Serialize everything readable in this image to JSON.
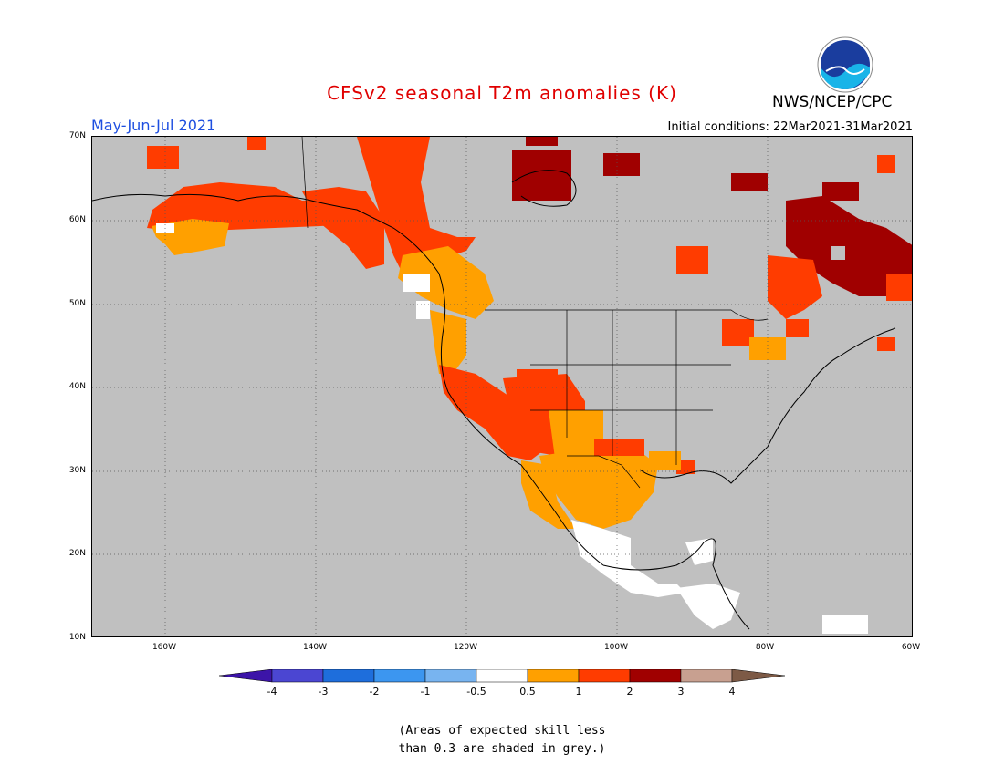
{
  "header": {
    "title": "CFSv2 seasonal T2m anomalies (K)",
    "season": "May-Jun-Jul 2021",
    "initial_conditions": "Initial conditions: 22Mar2021-31Mar2021",
    "agency": "NWS/NCEP/CPC",
    "logo_text": "NOAA"
  },
  "axes": {
    "lat_labels": [
      "70N",
      "60N",
      "50N",
      "40N",
      "30N",
      "20N",
      "10N"
    ],
    "lon_labels": [
      "160W",
      "140W",
      "120W",
      "100W",
      "80W",
      "60W"
    ]
  },
  "colorbar": {
    "labels": [
      "-4",
      "-3",
      "-2",
      "-1",
      "-0.5",
      "0.5",
      "1",
      "2",
      "3",
      "4"
    ],
    "colors": [
      "#3c14a8",
      "#4b46d2",
      "#1e6edc",
      "#3c96f0",
      "#78b4f0",
      "#ffffff",
      "#ffa000",
      "#ff3c00",
      "#a00000",
      "#c8a090",
      "#7d5a46"
    ]
  },
  "colors": {
    "grey": "#c0c0c0",
    "warm1": "#ffa000",
    "warm2": "#ff3c00",
    "warm3": "#a00000",
    "neutral": "#ffffff"
  },
  "footnote": {
    "line1": "(Areas of expected skill less",
    "line2": "than 0.3 are shaded in grey.)"
  }
}
